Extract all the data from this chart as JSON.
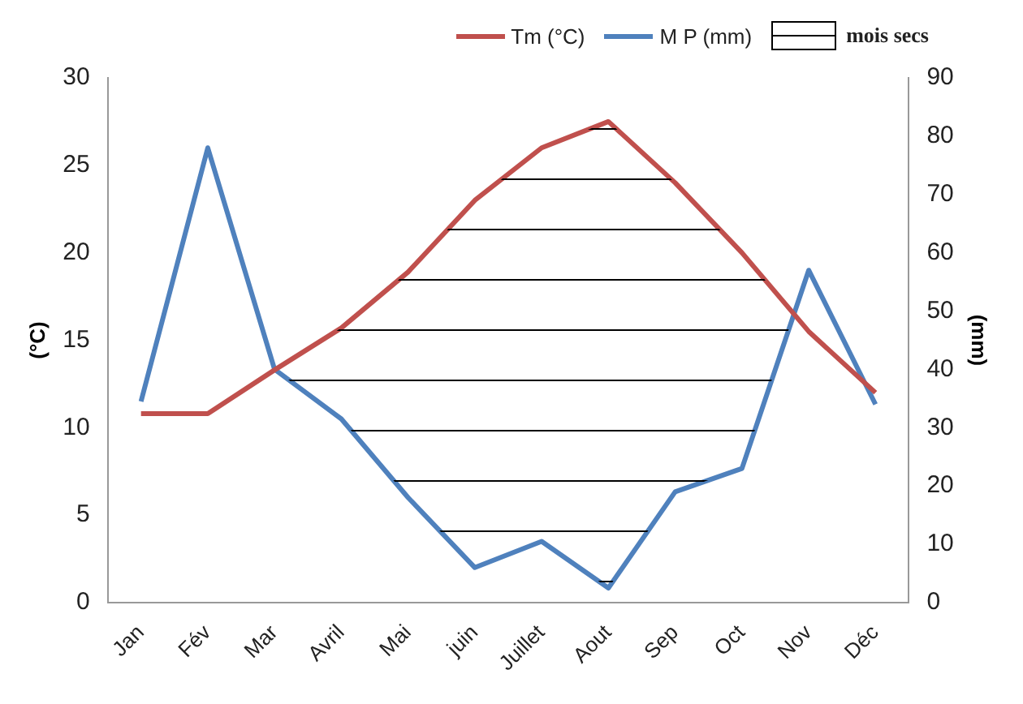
{
  "chart_data": {
    "type": "line",
    "ylabel": "(°C)",
    "y2label": "(mm)",
    "categories": [
      "Jan",
      "Fév",
      "Mar",
      "Avril",
      "Mai",
      "juin",
      "Juillet",
      "Aout",
      "Sep",
      "Oct",
      "Nov",
      "Déc"
    ],
    "series": [
      {
        "name": "Tm (°C)",
        "color": "#c0504d",
        "values": [
          10.8,
          10.8,
          13.3,
          15.7,
          18.9,
          23,
          26,
          27.5,
          24,
          20,
          15.5,
          12
        ]
      },
      {
        "name": "M P (mm)",
        "color": "#4f81bd",
        "axis": "y2",
        "values": [
          34.5,
          78,
          40,
          31.5,
          18,
          6,
          10.5,
          2.5,
          19,
          23,
          57,
          34
        ]
      }
    ],
    "annotations": [
      "mois secs"
    ],
    "ylim": [
      0,
      30
    ],
    "yticks": [
      0,
      5,
      10,
      15,
      20,
      25,
      30
    ],
    "y2lim": [
      0,
      90
    ],
    "y2ticks": [
      0,
      10,
      20,
      30,
      40,
      50,
      60,
      70,
      80,
      90
    ],
    "grid": false,
    "legend": "top right",
    "marker": "none",
    "line_style": "solid"
  }
}
